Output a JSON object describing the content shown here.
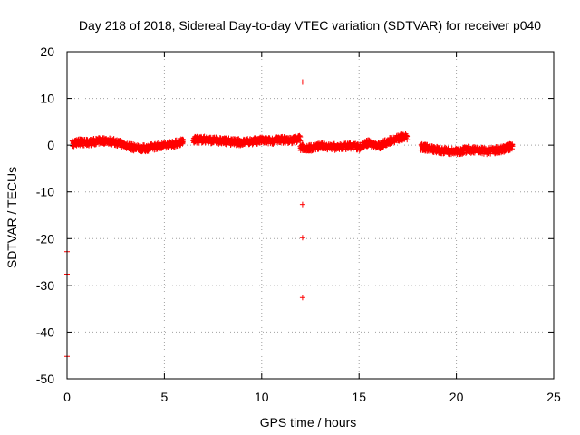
{
  "chart_data": {
    "type": "scatter",
    "title": "Day 218 of 2018, Sidereal Day-to-day VTEC variation (SDTVAR) for receiver p040",
    "xlabel": "GPS time / hours",
    "ylabel": "SDTVAR / TECUs",
    "xlim": [
      0,
      25
    ],
    "ylim": [
      -50,
      20
    ],
    "xticks": [
      0,
      5,
      10,
      15,
      20,
      25
    ],
    "yticks": [
      -50,
      -40,
      -30,
      -20,
      -10,
      0,
      10,
      20
    ],
    "grid": true,
    "marker": "+",
    "series_color": "#ff0000",
    "band": {
      "description": "dense daily trace of points, sampled as hour/value pairs",
      "segments": [
        {
          "x": [
            0.3,
            0.6,
            1.0,
            1.5,
            2.0,
            2.5,
            3.0,
            3.5,
            4.0,
            4.5,
            5.0,
            5.5,
            6.0
          ],
          "y": [
            0.3,
            0.7,
            0.5,
            0.8,
            1.0,
            0.6,
            0.0,
            -0.6,
            -0.7,
            -0.3,
            0.0,
            0.3,
            0.8
          ]
        },
        {
          "x": [
            6.5,
            7.0,
            7.5,
            8.0,
            8.5,
            9.0,
            9.5,
            10.0,
            10.5,
            11.0,
            11.5,
            12.0
          ],
          "y": [
            1.1,
            1.2,
            1.0,
            0.9,
            0.7,
            0.6,
            0.8,
            1.0,
            0.9,
            1.2,
            1.0,
            1.5
          ]
        },
        {
          "x": [
            12.0,
            12.5,
            13.0,
            13.5,
            14.0,
            14.5,
            15.0,
            15.5,
            16.0,
            16.5,
            17.0,
            17.5
          ],
          "y": [
            -0.5,
            -0.6,
            -0.2,
            -0.3,
            -0.5,
            -0.2,
            -0.4,
            0.5,
            -0.2,
            0.8,
            1.5,
            1.8
          ]
        },
        {
          "x": [
            18.2,
            18.5,
            19.0,
            19.5,
            20.0,
            20.5,
            21.0,
            21.5,
            22.0,
            22.5,
            22.9
          ],
          "y": [
            -0.4,
            -0.6,
            -1.0,
            -1.2,
            -1.4,
            -1.0,
            -1.0,
            -1.3,
            -1.1,
            -0.8,
            -0.1
          ]
        }
      ]
    },
    "outliers": [
      {
        "x": 0.0,
        "y": -22.8
      },
      {
        "x": 0.0,
        "y": -27.6
      },
      {
        "x": 0.0,
        "y": -45.2
      },
      {
        "x": 0.3,
        "y": -0.2
      },
      {
        "x": 12.1,
        "y": 13.5
      },
      {
        "x": 12.1,
        "y": -12.7
      },
      {
        "x": 12.1,
        "y": -19.8
      },
      {
        "x": 12.1,
        "y": -32.6
      },
      {
        "x": 12.4,
        "y": -1.2
      },
      {
        "x": 9.2,
        "y": 1.0
      }
    ]
  }
}
